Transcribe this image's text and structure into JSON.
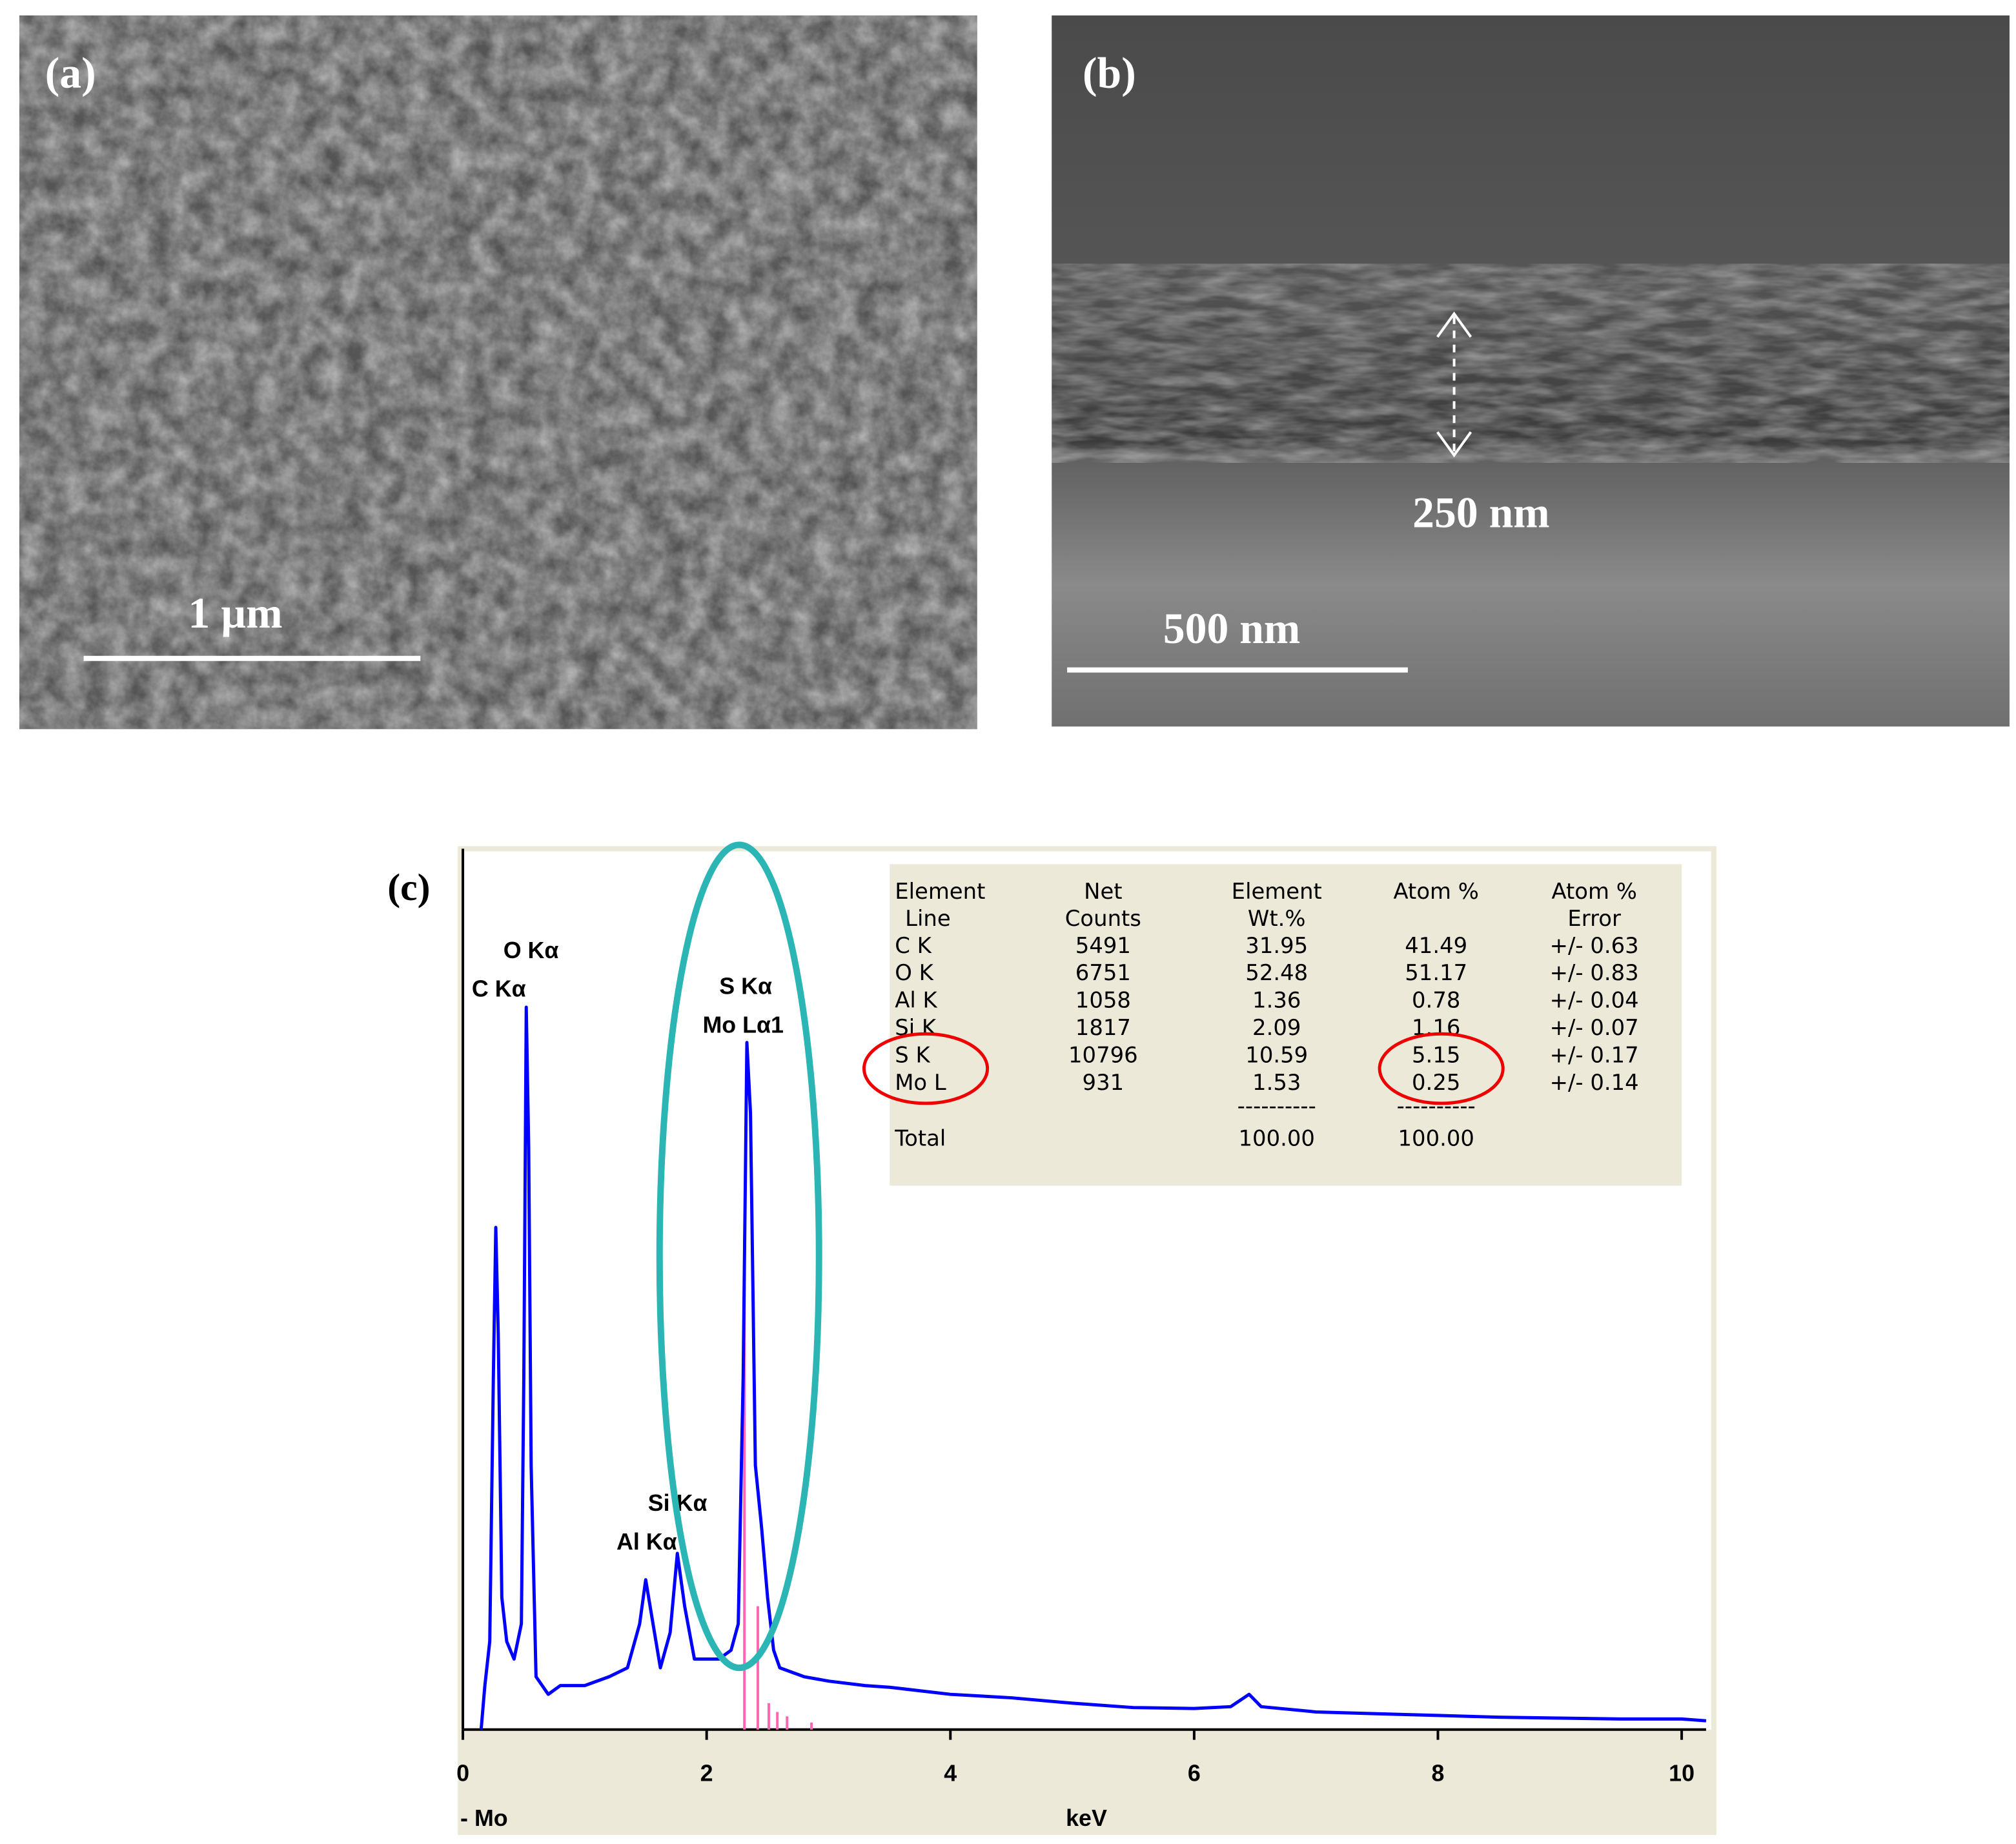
{
  "panels": {
    "a": {
      "label": "(a)",
      "scale_bar": "1 µm"
    },
    "b": {
      "label": "(b)",
      "thickness": "250 nm",
      "scale_bar": "500 nm"
    }
  },
  "chart_data": {
    "type": "line",
    "title": "(c)",
    "x_label": "keV",
    "corner_label": "- Mo",
    "xlim": [
      0,
      10.2
    ],
    "ylim": [
      0,
      100
    ],
    "xticks": [
      0,
      2,
      4,
      6,
      8,
      10
    ],
    "series": [
      {
        "color": "#0000ff",
        "x": [
          0.15,
          0.18,
          0.22,
          0.25,
          0.27,
          0.29,
          0.32,
          0.36,
          0.42,
          0.48,
          0.5,
          0.52,
          0.54,
          0.56,
          0.6,
          0.7,
          0.8,
          1.0,
          1.2,
          1.35,
          1.45,
          1.5,
          1.56,
          1.62,
          1.7,
          1.76,
          1.82,
          1.9,
          2.0,
          2.1,
          2.2,
          2.26,
          2.3,
          2.33,
          2.36,
          2.4,
          2.45,
          2.5,
          2.55,
          2.6,
          2.8,
          3.0,
          3.3,
          3.5,
          4.0,
          4.5,
          5.0,
          5.5,
          6.0,
          6.3,
          6.45,
          6.55,
          7.0,
          7.5,
          8.0,
          8.5,
          9.0,
          9.5,
          10.0,
          10.2
        ],
        "values": [
          0,
          5,
          10,
          40,
          57,
          45,
          15,
          10,
          8,
          12,
          40,
          82,
          66,
          30,
          6,
          4,
          5,
          5,
          6,
          7,
          12,
          17,
          12,
          7,
          11,
          20,
          14,
          8,
          8,
          8,
          9,
          12,
          40,
          78,
          70,
          30,
          23,
          15,
          9,
          7,
          6,
          5.5,
          5,
          4.8,
          4,
          3.6,
          3,
          2.5,
          2.4,
          2.6,
          4,
          2.6,
          2,
          1.8,
          1.6,
          1.4,
          1.3,
          1.2,
          1.2,
          1.0
        ]
      }
    ],
    "marker_lines": {
      "color": "#ff66b3",
      "x": [
        2.31,
        2.42,
        2.51,
        2.58,
        2.66,
        2.86
      ],
      "values": [
        56,
        14,
        3,
        2,
        1.5,
        0.8
      ]
    },
    "annotations": [
      "O Kα",
      "C Kα",
      "S Kα",
      "Mo Lα1",
      "Si Kα",
      "Al Kα"
    ],
    "table": {
      "header": [
        [
          "Element",
          "Line"
        ],
        [
          "Net",
          "Counts"
        ],
        [
          "Element",
          "Wt.%"
        ],
        [
          "Atom %"
        ],
        [
          "Atom %",
          "Error"
        ]
      ],
      "rows": [
        [
          "C K",
          "5491",
          "31.95",
          "41.49",
          "+/- 0.63"
        ],
        [
          "O K",
          "6751",
          "52.48",
          "51.17",
          "+/- 0.83"
        ],
        [
          "Al K",
          "1058",
          "1.36",
          "0.78",
          "+/- 0.04"
        ],
        [
          "Si K",
          "1817",
          "2.09",
          "1.16",
          "+/- 0.07"
        ],
        [
          "S K",
          "10796",
          "10.59",
          "5.15",
          "+/- 0.17"
        ],
        [
          "Mo L",
          "931",
          "1.53",
          "0.25",
          "+/- 0.14"
        ]
      ],
      "dashes": "----------",
      "total": {
        "label": "Total",
        "wt": "100.00",
        "atom": "100.00"
      }
    }
  }
}
